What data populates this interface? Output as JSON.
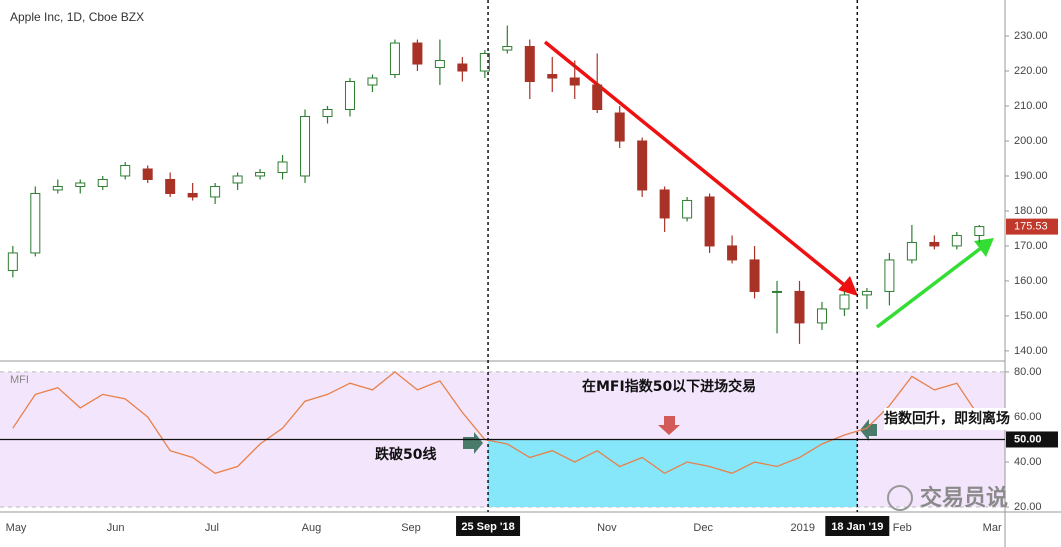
{
  "chart_data": [
    {
      "type": "candlestick",
      "title": "Apple Inc, 1D, Cboe BZX",
      "x": [
        "2018-04-30",
        "2018-05-07",
        "2018-05-14",
        "2018-05-21",
        "2018-05-28",
        "2018-06-04",
        "2018-06-11",
        "2018-06-18",
        "2018-06-25",
        "2018-07-02",
        "2018-07-09",
        "2018-07-16",
        "2018-07-23",
        "2018-07-30",
        "2018-08-06",
        "2018-08-13",
        "2018-08-20",
        "2018-08-27",
        "2018-09-03",
        "2018-09-10",
        "2018-09-17",
        "2018-09-24",
        "2018-10-01",
        "2018-10-08",
        "2018-10-15",
        "2018-10-22",
        "2018-10-29",
        "2018-11-05",
        "2018-11-12",
        "2018-11-19",
        "2018-11-26",
        "2018-12-03",
        "2018-12-10",
        "2018-12-17",
        "2018-12-24",
        "2018-12-31",
        "2019-01-07",
        "2019-01-14",
        "2019-01-21",
        "2019-01-28",
        "2019-02-04",
        "2019-02-11",
        "2019-02-18",
        "2019-02-25"
      ],
      "open": [
        163,
        168,
        186,
        187,
        187,
        190,
        192,
        189,
        185,
        184,
        188,
        190,
        191,
        190,
        207,
        209,
        216,
        219,
        228,
        221,
        222,
        220,
        226,
        227,
        219,
        218,
        216,
        208,
        200,
        186,
        178,
        184,
        170,
        166,
        157,
        157,
        148,
        152,
        156,
        157,
        166,
        171,
        170,
        173
      ],
      "high": [
        170,
        187,
        189,
        189,
        190,
        194,
        193,
        191,
        188,
        188,
        191,
        192,
        196,
        209,
        210,
        218,
        219,
        229,
        229,
        229,
        224,
        226,
        233,
        229,
        224,
        223,
        225,
        210,
        201,
        187,
        184,
        185,
        173,
        170,
        160,
        160,
        154,
        157,
        158,
        168,
        176,
        173,
        174,
        176
      ],
      "low": [
        161,
        167,
        185,
        185,
        186,
        189,
        188,
        184,
        183,
        182,
        186,
        189,
        189,
        188,
        205,
        207,
        214,
        218,
        220,
        216,
        217,
        218,
        225,
        212,
        214,
        212,
        208,
        198,
        184,
        174,
        177,
        168,
        165,
        155,
        145,
        142,
        146,
        150,
        152,
        153,
        165,
        169,
        169,
        171
      ],
      "close": [
        168,
        185,
        187,
        188,
        189,
        193,
        189,
        185,
        184,
        187,
        190,
        191,
        194,
        207,
        209,
        217,
        218,
        228,
        222,
        223,
        220,
        225,
        227,
        217,
        218,
        216,
        209,
        200,
        186,
        178,
        183,
        170,
        166,
        157,
        157,
        148,
        152,
        156,
        157,
        166,
        171,
        170,
        173,
        175.53
      ],
      "up_color": "#2e7d32",
      "down_color": "#a93226",
      "xlim": [
        "2018-04-26",
        "2019-03-05"
      ],
      "xticks": [
        {
          "value": "2018-05-01",
          "label": "May"
        },
        {
          "value": "2018-06-01",
          "label": "Jun"
        },
        {
          "value": "2018-07-01",
          "label": "Jul"
        },
        {
          "value": "2018-08-01",
          "label": "Aug"
        },
        {
          "value": "2018-09-01",
          "label": "Sep"
        },
        {
          "value": "2018-11-01",
          "label": "Nov"
        },
        {
          "value": "2018-12-01",
          "label": "Dec"
        },
        {
          "value": "2019-01-01",
          "label": "2019"
        },
        {
          "value": "2019-02-01",
          "label": "Feb"
        },
        {
          "value": "2019-03-01",
          "label": "Mar"
        }
      ],
      "markers": [
        {
          "value": "2018-09-25",
          "label": "25 Sep '18"
        },
        {
          "value": "2019-01-18",
          "label": "18 Jan '19"
        }
      ],
      "ylim": [
        137.4,
        240.3
      ],
      "yticks": [
        {
          "value": 140,
          "label": "140.00"
        },
        {
          "value": 150,
          "label": "150.00"
        },
        {
          "value": 160,
          "label": "160.00"
        },
        {
          "value": 170,
          "label": "170.00"
        },
        {
          "value": 180,
          "label": "180.00"
        },
        {
          "value": 190,
          "label": "190.00"
        },
        {
          "value": 200,
          "label": "200.00"
        },
        {
          "value": 210,
          "label": "210.00"
        },
        {
          "value": 220,
          "label": "220.00"
        },
        {
          "value": 230,
          "label": "230.00"
        }
      ],
      "last_price": {
        "value": 175.53,
        "label": "175.53",
        "color": "#c0392b"
      }
    },
    {
      "type": "line",
      "title": "MFI",
      "x": [
        "2018-04-30",
        "2018-05-07",
        "2018-05-14",
        "2018-05-21",
        "2018-05-28",
        "2018-06-04",
        "2018-06-11",
        "2018-06-18",
        "2018-06-25",
        "2018-07-02",
        "2018-07-09",
        "2018-07-16",
        "2018-07-23",
        "2018-07-30",
        "2018-08-06",
        "2018-08-13",
        "2018-08-20",
        "2018-08-27",
        "2018-09-03",
        "2018-09-10",
        "2018-09-17",
        "2018-09-24",
        "2018-10-01",
        "2018-10-08",
        "2018-10-15",
        "2018-10-22",
        "2018-10-29",
        "2018-11-05",
        "2018-11-12",
        "2018-11-19",
        "2018-11-26",
        "2018-12-03",
        "2018-12-10",
        "2018-12-17",
        "2018-12-24",
        "2018-12-31",
        "2019-01-07",
        "2019-01-14",
        "2019-01-21",
        "2019-01-28",
        "2019-02-04",
        "2019-02-11",
        "2019-02-18",
        "2019-02-25"
      ],
      "series": [
        {
          "name": "MFI",
          "color": "#e8804a",
          "values": [
            55,
            70,
            73,
            64,
            70,
            68,
            60,
            45,
            42,
            35,
            38,
            48,
            55,
            67,
            70,
            75,
            72,
            80,
            72,
            76,
            62,
            50,
            48,
            42,
            45,
            40,
            45,
            38,
            42,
            35,
            40,
            38,
            35,
            40,
            38,
            42,
            48,
            52,
            55,
            65,
            78,
            72,
            75,
            60
          ]
        }
      ],
      "ylim": [
        17.8,
        84.4
      ],
      "yticks": [
        {
          "value": 80,
          "label": "80.00"
        },
        {
          "value": 60,
          "label": "60.00"
        },
        {
          "value": 40,
          "label": "40.00"
        },
        {
          "value": 20,
          "label": "20.00"
        }
      ],
      "level": {
        "value": 50,
        "label": "50.00"
      },
      "band": [
        20,
        80
      ],
      "band_color": "#f3e5fb",
      "zone": {
        "from": "2018-09-25",
        "to": "2019-01-18",
        "low": 20,
        "high": 50,
        "color": "#86e6fa"
      },
      "annotations": [
        "跌破50线",
        "在MFI指数50以下进场交易",
        "指数回升，即刻离场"
      ]
    }
  ],
  "watermark": "交易员说"
}
